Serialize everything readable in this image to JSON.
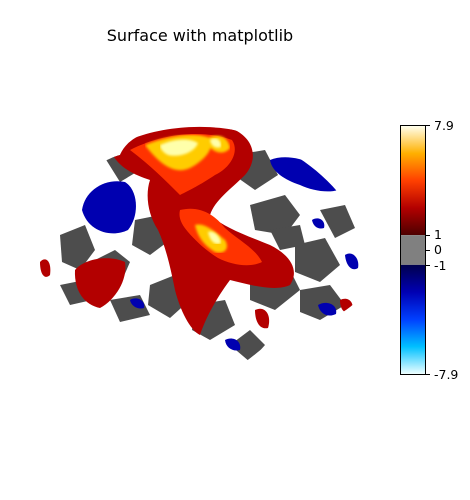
{
  "chart_data": {
    "type": "heatmap",
    "title": "Surface with matplotlib",
    "view": "lateral surface (left hemisphere)",
    "colormap": "cold_hot",
    "vmin": -7.9,
    "vmax": 7.9,
    "threshold": 1,
    "colorbar": {
      "tick_labels": [
        "7.9",
        "1",
        "0",
        "-1",
        "-7.9"
      ],
      "tick_values": [
        7.9,
        1,
        0,
        -1,
        -7.9
      ]
    },
    "colors": {
      "background_sulcal_dark": "#4d4d4d",
      "background_gyral_light": "#ffffff",
      "positive_low": "#8b0000",
      "positive_high": "#ffff99",
      "negative_low": "#00008b",
      "negative_high": "#b3ffff"
    }
  }
}
